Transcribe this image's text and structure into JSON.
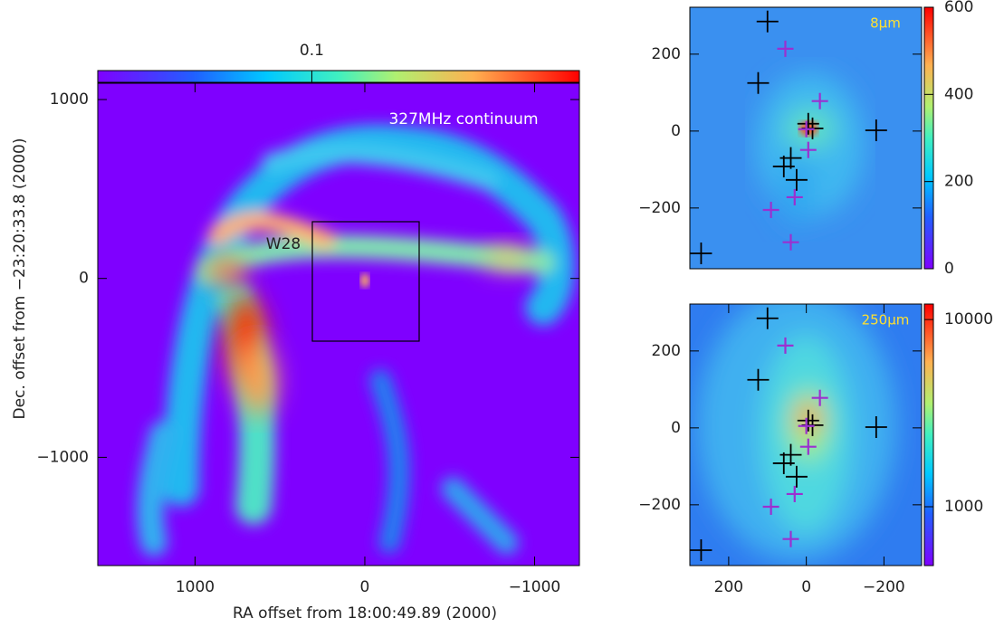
{
  "chart_data": [
    {
      "type": "image",
      "xlabel": "RA offset from 18:00:49.89 (2000)",
      "ylabel": "Dec. offset from −23:20:33.8 (2000)",
      "annotations": [
        "327MHz continuum",
        "W28"
      ],
      "xlim": [
        1573,
        -1264
      ],
      "ylim": [
        -1605,
        1091
      ],
      "xticks": [
        1000,
        0,
        {
          "value": -1000,
          "label": "−1000"
        }
      ],
      "yticks": [
        1000,
        0,
        {
          "value": -1000,
          "label": "−1000"
        }
      ],
      "clim": [
        0,
        0.225
      ],
      "colorbar_ticks": [
        0.1
      ]
    },
    {
      "type": "image",
      "title": "8μm",
      "xlim": [
        300,
        -297
      ],
      "ylim": [
        -358,
        322
      ],
      "yticks": [
        200,
        0,
        {
          "value": -200,
          "label": "−200"
        }
      ],
      "clim": [
        0,
        600
      ],
      "colorbar_ticks": [
        0,
        200,
        400,
        600
      ],
      "markers": [
        {
          "color": "#000000",
          "x": [
            100,
            124,
            -180,
            -5,
            -16,
            58,
            25,
            40,
            271
          ],
          "y": [
            285,
            125,
            2,
            19,
            7,
            -92,
            -127,
            -70,
            -318
          ]
        },
        {
          "color": "#9b30d0",
          "x": [
            54,
            -35,
            -5,
            30,
            91,
            40,
            0
          ],
          "y": [
            214,
            78,
            -49,
            -172,
            -205,
            -289,
            5
          ]
        }
      ]
    },
    {
      "type": "image",
      "title": "250μm",
      "xlim": [
        300,
        -297
      ],
      "ylim": [
        -358,
        322
      ],
      "xticks": [
        200,
        0,
        {
          "value": -200,
          "label": "−200"
        }
      ],
      "yticks": [
        200,
        0,
        {
          "value": -200,
          "label": "−200"
        }
      ],
      "clim": [
        485,
        12100
      ],
      "colorbar_log": true,
      "colorbar_ticks": [
        1000,
        10000
      ],
      "markers": [
        {
          "color": "#000000",
          "x": [
            100,
            124,
            -180,
            -5,
            -16,
            58,
            25,
            40,
            271
          ],
          "y": [
            285,
            125,
            2,
            19,
            7,
            -92,
            -127,
            -70,
            -318
          ]
        },
        {
          "color": "#9b30d0",
          "x": [
            54,
            -35,
            -5,
            30,
            91,
            40,
            0
          ],
          "y": [
            214,
            78,
            -49,
            -172,
            -205,
            -289,
            5
          ]
        }
      ]
    }
  ]
}
